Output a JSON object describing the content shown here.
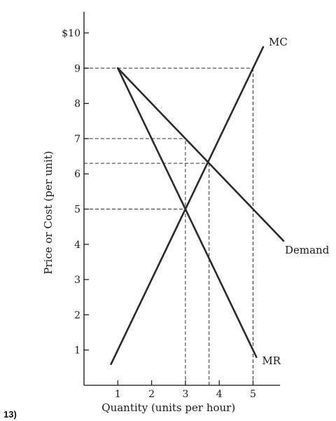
{
  "problem_number": "13)",
  "chart_data": {
    "type": "line",
    "title": "",
    "xlabel": "Quantity (units per hour)",
    "ylabel": "Price or Cost (per unit)",
    "xlim": [
      0,
      5.8
    ],
    "ylim": [
      0,
      10.6
    ],
    "x_ticks": [
      1,
      2,
      3,
      4,
      5
    ],
    "x_tick_labels": [
      "1",
      "2",
      "3",
      "4",
      "5"
    ],
    "y_ticks": [
      1,
      2,
      3,
      4,
      5,
      6,
      7,
      8,
      9,
      10
    ],
    "y_tick_labels": [
      "1",
      "2",
      "3",
      "4",
      "5",
      "6",
      "7",
      "8",
      "9",
      "$10"
    ],
    "grid": false,
    "legend": "none",
    "series": [
      {
        "name": "MC",
        "x": [
          0.8,
          5.3
        ],
        "y": [
          0.6,
          9.6
        ]
      },
      {
        "name": "Demand",
        "x": [
          1,
          5.9
        ],
        "y": [
          9,
          4.1
        ]
      },
      {
        "name": "MR",
        "x": [
          1,
          5.1
        ],
        "y": [
          9,
          0.8
        ]
      }
    ],
    "reference_lines": [
      {
        "type": "horizontal",
        "y": 9,
        "x_from": 0,
        "x_to": 5
      },
      {
        "type": "vertical",
        "x": 5,
        "y_from": 0,
        "y_to": 9
      },
      {
        "type": "horizontal",
        "y": 7,
        "x_from": 0,
        "x_to": 3
      },
      {
        "type": "horizontal",
        "y": 6.3,
        "x_from": 0,
        "x_to": 3.7
      },
      {
        "type": "horizontal",
        "y": 5,
        "x_from": 0,
        "x_to": 3
      },
      {
        "type": "vertical",
        "x": 3,
        "y_from": 0,
        "y_to": 7
      },
      {
        "type": "vertical",
        "x": 3.7,
        "y_from": 0,
        "y_to": 6.3
      }
    ],
    "line_color": "#2b2b2b"
  }
}
